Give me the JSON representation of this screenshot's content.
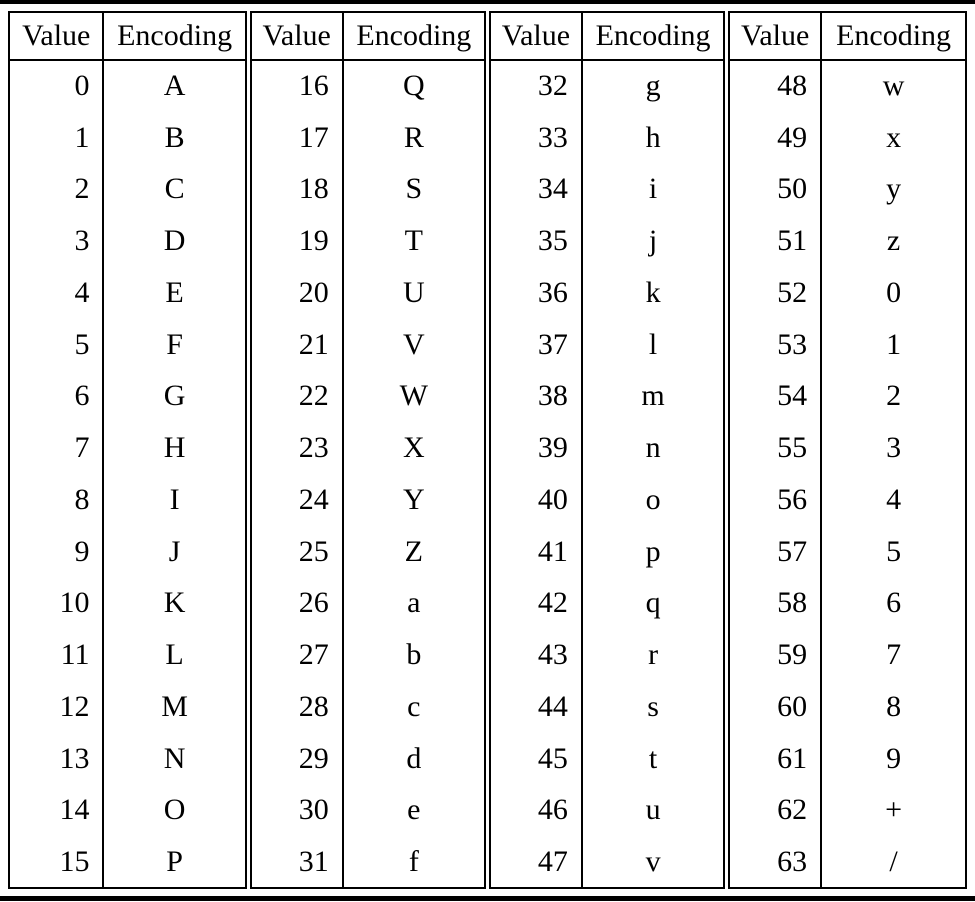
{
  "colors": {
    "background": "#ffffff",
    "text": "#000000",
    "rule": "#000000"
  },
  "table": {
    "header": {
      "value_label": "Value",
      "encoding_label": "Encoding"
    },
    "groups": [
      {
        "rows": [
          {
            "value": "0",
            "encoding": "A"
          },
          {
            "value": "1",
            "encoding": "B"
          },
          {
            "value": "2",
            "encoding": "C"
          },
          {
            "value": "3",
            "encoding": "D"
          },
          {
            "value": "4",
            "encoding": "E"
          },
          {
            "value": "5",
            "encoding": "F"
          },
          {
            "value": "6",
            "encoding": "G"
          },
          {
            "value": "7",
            "encoding": "H"
          },
          {
            "value": "8",
            "encoding": "I"
          },
          {
            "value": "9",
            "encoding": "J"
          },
          {
            "value": "10",
            "encoding": "K"
          },
          {
            "value": "11",
            "encoding": "L"
          },
          {
            "value": "12",
            "encoding": "M"
          },
          {
            "value": "13",
            "encoding": "N"
          },
          {
            "value": "14",
            "encoding": "O"
          },
          {
            "value": "15",
            "encoding": "P"
          }
        ]
      },
      {
        "rows": [
          {
            "value": "16",
            "encoding": "Q"
          },
          {
            "value": "17",
            "encoding": "R"
          },
          {
            "value": "18",
            "encoding": "S"
          },
          {
            "value": "19",
            "encoding": "T"
          },
          {
            "value": "20",
            "encoding": "U"
          },
          {
            "value": "21",
            "encoding": "V"
          },
          {
            "value": "22",
            "encoding": "W"
          },
          {
            "value": "23",
            "encoding": "X"
          },
          {
            "value": "24",
            "encoding": "Y"
          },
          {
            "value": "25",
            "encoding": "Z"
          },
          {
            "value": "26",
            "encoding": "a"
          },
          {
            "value": "27",
            "encoding": "b"
          },
          {
            "value": "28",
            "encoding": "c"
          },
          {
            "value": "29",
            "encoding": "d"
          },
          {
            "value": "30",
            "encoding": "e"
          },
          {
            "value": "31",
            "encoding": "f"
          }
        ]
      },
      {
        "rows": [
          {
            "value": "32",
            "encoding": "g"
          },
          {
            "value": "33",
            "encoding": "h"
          },
          {
            "value": "34",
            "encoding": "i"
          },
          {
            "value": "35",
            "encoding": "j"
          },
          {
            "value": "36",
            "encoding": "k"
          },
          {
            "value": "37",
            "encoding": "l"
          },
          {
            "value": "38",
            "encoding": "m"
          },
          {
            "value": "39",
            "encoding": "n"
          },
          {
            "value": "40",
            "encoding": "o"
          },
          {
            "value": "41",
            "encoding": "p"
          },
          {
            "value": "42",
            "encoding": "q"
          },
          {
            "value": "43",
            "encoding": "r"
          },
          {
            "value": "44",
            "encoding": "s"
          },
          {
            "value": "45",
            "encoding": "t"
          },
          {
            "value": "46",
            "encoding": "u"
          },
          {
            "value": "47",
            "encoding": "v"
          }
        ]
      },
      {
        "rows": [
          {
            "value": "48",
            "encoding": "w"
          },
          {
            "value": "49",
            "encoding": "x"
          },
          {
            "value": "50",
            "encoding": "y"
          },
          {
            "value": "51",
            "encoding": "z"
          },
          {
            "value": "52",
            "encoding": "0"
          },
          {
            "value": "53",
            "encoding": "1"
          },
          {
            "value": "54",
            "encoding": "2"
          },
          {
            "value": "55",
            "encoding": "3"
          },
          {
            "value": "56",
            "encoding": "4"
          },
          {
            "value": "57",
            "encoding": "5"
          },
          {
            "value": "58",
            "encoding": "6"
          },
          {
            "value": "59",
            "encoding": "7"
          },
          {
            "value": "60",
            "encoding": "8"
          },
          {
            "value": "61",
            "encoding": "9"
          },
          {
            "value": "62",
            "encoding": "+"
          },
          {
            "value": "63",
            "encoding": "/"
          }
        ]
      }
    ]
  }
}
